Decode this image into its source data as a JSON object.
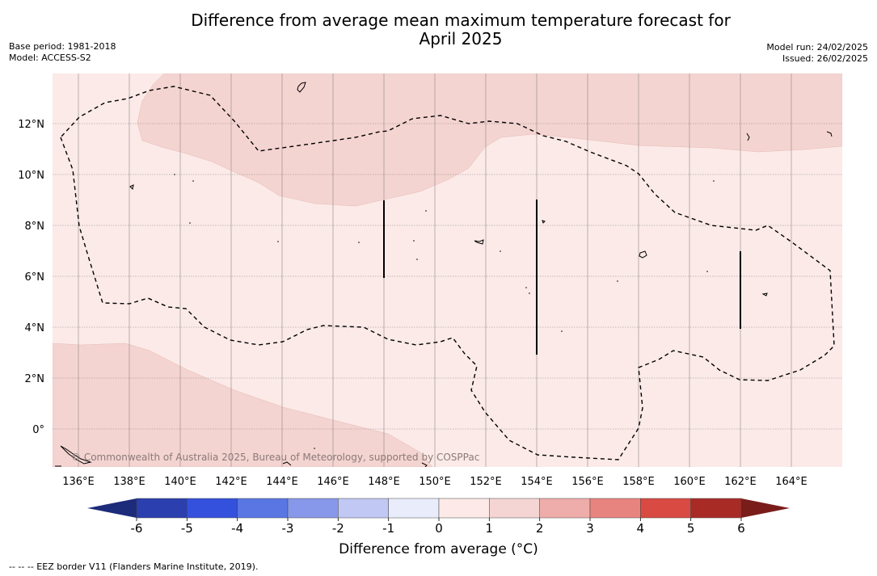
{
  "title_line1": "Difference from average mean maximum temperature forecast for",
  "title_line2": "April 2025",
  "base_period": "Base period: 1981-2018",
  "model": "Model: ACCESS-S2",
  "model_run": "Model run: 24/02/2025",
  "issued": "Issued: 26/02/2025",
  "copyright": "© Commonwealth of Australia 2025, Bureau of Meteorology, supported by COSPPac",
  "footnote": "--  --  -- EEZ border V11 (Flanders Marine Institute, 2019).",
  "colorbar": {
    "label": "Difference from average (°C)",
    "ticks": [
      "-6",
      "-5",
      "-4",
      "-3",
      "-2",
      "-1",
      "0",
      "1",
      "2",
      "3",
      "4",
      "5",
      "6"
    ],
    "colors": {
      "extend_low": "#1c2b7a",
      "bins": [
        "#2b3fae",
        "#3451dd",
        "#5a76e3",
        "#8798ea",
        "#c0c8f3",
        "#e9ecfb",
        "#fce9e8",
        "#f5d5d3",
        "#eeadaa",
        "#e8847f",
        "#d84a42",
        "#a92b26"
      ],
      "extend_high": "#7a1d1a"
    }
  },
  "map": {
    "x_tick_labels": [
      "136°E",
      "138°E",
      "140°E",
      "142°E",
      "144°E",
      "146°E",
      "148°E",
      "150°E",
      "152°E",
      "154°E",
      "156°E",
      "158°E",
      "160°E",
      "162°E",
      "164°E"
    ],
    "y_tick_labels": [
      "12°N",
      "10°N",
      "8°N",
      "6°N",
      "4°N",
      "2°N",
      "0°"
    ],
    "fill_colors": {
      "anomaly_0_1": "#fbeae8",
      "anomaly_1_2": "#f4d4d1"
    }
  }
}
